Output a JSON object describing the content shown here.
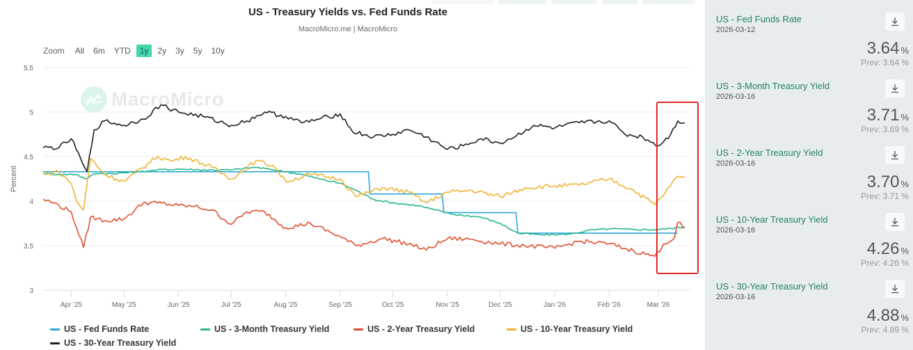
{
  "header": {
    "title": "US - Treasury Yields vs. Fed Funds Rate",
    "subtitle": "MacroMicro.me | MacroMicro"
  },
  "range_selector": {
    "label": "Zoom",
    "buttons": [
      "All",
      "6m",
      "YTD",
      "1y",
      "2y",
      "3y",
      "5y",
      "10y"
    ],
    "active": "1y"
  },
  "watermark": "MacroMicro",
  "chart_data": {
    "type": "line",
    "title": "US - Treasury Yields vs. Fed Funds Rate",
    "subtitle": "MacroMicro.me | MacroMicro",
    "xlabel": "",
    "ylabel": "Percent",
    "ylim": [
      3,
      5.5
    ],
    "yticks": [
      3,
      3.5,
      4,
      4.5,
      5,
      5.5
    ],
    "ytick_labels": [
      "3",
      "3.5",
      "4",
      "4.5",
      "5",
      "5.5"
    ],
    "x_range": [
      "2025-03-16",
      "2026-03-16"
    ],
    "xticks": [
      "2025-04-01",
      "2025-05-01",
      "2025-06-01",
      "2025-07-01",
      "2025-08-01",
      "2025-09-01",
      "2025-10-01",
      "2025-11-01",
      "2025-12-01",
      "2026-01-01",
      "2026-02-01",
      "2026-03-01"
    ],
    "xtick_labels": [
      "Apr '25",
      "May '25",
      "Jun '25",
      "Jul '25",
      "Aug '25",
      "Sep '25",
      "Oct '25",
      "Nov '25",
      "Dec '25",
      "Jan '26",
      "Feb '26",
      "Mar '26"
    ],
    "grid": true,
    "legend_position": "bottom",
    "annotation": "red highlight box around Mar 2026",
    "series": [
      {
        "name": "US - Fed Funds Rate",
        "color": "#2aa7d6",
        "points": [
          [
            "2025-03-16",
            4.33
          ],
          [
            "2025-09-17",
            4.33
          ],
          [
            "2025-09-18",
            4.08
          ],
          [
            "2025-10-29",
            4.08
          ],
          [
            "2025-10-30",
            3.87
          ],
          [
            "2025-12-10",
            3.87
          ],
          [
            "2025-12-11",
            3.64
          ],
          [
            "2026-03-12",
            3.64
          ]
        ]
      },
      {
        "name": "US - 3-Month Treasury Yield",
        "color": "#26b58c",
        "points": [
          [
            "2025-03-16",
            4.31
          ],
          [
            "2025-03-25",
            4.3
          ],
          [
            "2025-04-04",
            4.3
          ],
          [
            "2025-04-09",
            4.25
          ],
          [
            "2025-04-15",
            4.31
          ],
          [
            "2025-04-25",
            4.31
          ],
          [
            "2025-05-10",
            4.33
          ],
          [
            "2025-05-20",
            4.35
          ],
          [
            "2025-06-01",
            4.36
          ],
          [
            "2025-06-15",
            4.35
          ],
          [
            "2025-07-01",
            4.35
          ],
          [
            "2025-07-15",
            4.38
          ],
          [
            "2025-08-01",
            4.33
          ],
          [
            "2025-08-10",
            4.3
          ],
          [
            "2025-08-20",
            4.25
          ],
          [
            "2025-09-01",
            4.2
          ],
          [
            "2025-09-10",
            4.12
          ],
          [
            "2025-09-20",
            4.02
          ],
          [
            "2025-10-01",
            3.98
          ],
          [
            "2025-10-15",
            3.95
          ],
          [
            "2025-10-25",
            3.9
          ],
          [
            "2025-11-05",
            3.85
          ],
          [
            "2025-11-20",
            3.82
          ],
          [
            "2025-12-01",
            3.75
          ],
          [
            "2025-12-11",
            3.64
          ],
          [
            "2025-12-25",
            3.62
          ],
          [
            "2026-01-10",
            3.63
          ],
          [
            "2026-01-20",
            3.67
          ],
          [
            "2026-02-01",
            3.69
          ],
          [
            "2026-02-15",
            3.68
          ],
          [
            "2026-03-01",
            3.68
          ],
          [
            "2026-03-16",
            3.71
          ]
        ]
      },
      {
        "name": "US - 2-Year Treasury Yield",
        "color": "#e04e2c",
        "points": [
          [
            "2025-03-16",
            4.02
          ],
          [
            "2025-03-22",
            3.98
          ],
          [
            "2025-04-01",
            3.88
          ],
          [
            "2025-04-04",
            3.7
          ],
          [
            "2025-04-08",
            3.48
          ],
          [
            "2025-04-12",
            3.82
          ],
          [
            "2025-04-20",
            3.78
          ],
          [
            "2025-05-01",
            3.8
          ],
          [
            "2025-05-12",
            3.98
          ],
          [
            "2025-05-20",
            3.98
          ],
          [
            "2025-06-01",
            3.95
          ],
          [
            "2025-06-10",
            3.94
          ],
          [
            "2025-06-20",
            3.9
          ],
          [
            "2025-07-01",
            3.74
          ],
          [
            "2025-07-10",
            3.88
          ],
          [
            "2025-07-20",
            3.88
          ],
          [
            "2025-08-01",
            3.7
          ],
          [
            "2025-08-15",
            3.75
          ],
          [
            "2025-09-01",
            3.6
          ],
          [
            "2025-09-10",
            3.5
          ],
          [
            "2025-09-25",
            3.58
          ],
          [
            "2025-10-10",
            3.52
          ],
          [
            "2025-10-20",
            3.45
          ],
          [
            "2025-11-01",
            3.58
          ],
          [
            "2025-11-15",
            3.57
          ],
          [
            "2025-12-01",
            3.52
          ],
          [
            "2025-12-15",
            3.5
          ],
          [
            "2026-01-01",
            3.47
          ],
          [
            "2026-01-15",
            3.55
          ],
          [
            "2026-02-01",
            3.52
          ],
          [
            "2026-02-15",
            3.44
          ],
          [
            "2026-02-27",
            3.38
          ],
          [
            "2026-03-04",
            3.52
          ],
          [
            "2026-03-10",
            3.58
          ],
          [
            "2026-03-12",
            3.76
          ],
          [
            "2026-03-16",
            3.7
          ]
        ]
      },
      {
        "name": "US - 10-Year Treasury Yield",
        "color": "#f0b232",
        "points": [
          [
            "2025-03-16",
            4.3
          ],
          [
            "2025-03-25",
            4.33
          ],
          [
            "2025-04-01",
            4.2
          ],
          [
            "2025-04-04",
            4.0
          ],
          [
            "2025-04-08",
            3.9
          ],
          [
            "2025-04-12",
            4.48
          ],
          [
            "2025-04-20",
            4.3
          ],
          [
            "2025-05-01",
            4.22
          ],
          [
            "2025-05-20",
            4.5
          ],
          [
            "2025-05-28",
            4.45
          ],
          [
            "2025-06-05",
            4.5
          ],
          [
            "2025-06-20",
            4.38
          ],
          [
            "2025-07-01",
            4.25
          ],
          [
            "2025-07-15",
            4.45
          ],
          [
            "2025-07-25",
            4.4
          ],
          [
            "2025-08-01",
            4.22
          ],
          [
            "2025-08-15",
            4.3
          ],
          [
            "2025-09-01",
            4.25
          ],
          [
            "2025-09-10",
            4.05
          ],
          [
            "2025-09-25",
            4.15
          ],
          [
            "2025-10-10",
            4.1
          ],
          [
            "2025-10-20",
            3.98
          ],
          [
            "2025-11-01",
            4.1
          ],
          [
            "2025-11-15",
            4.12
          ],
          [
            "2025-12-01",
            4.05
          ],
          [
            "2025-12-15",
            4.15
          ],
          [
            "2026-01-01",
            4.17
          ],
          [
            "2026-01-15",
            4.18
          ],
          [
            "2026-02-01",
            4.25
          ],
          [
            "2026-02-15",
            4.12
          ],
          [
            "2026-02-27",
            3.96
          ],
          [
            "2026-03-05",
            4.1
          ],
          [
            "2026-03-12",
            4.28
          ],
          [
            "2026-03-16",
            4.26
          ]
        ]
      },
      {
        "name": "US - 30-Year Treasury Yield",
        "color": "#1e1e24",
        "points": [
          [
            "2025-03-16",
            4.6
          ],
          [
            "2025-03-25",
            4.6
          ],
          [
            "2025-04-01",
            4.7
          ],
          [
            "2025-04-08",
            4.4
          ],
          [
            "2025-04-10",
            4.33
          ],
          [
            "2025-04-14",
            4.8
          ],
          [
            "2025-04-20",
            4.9
          ],
          [
            "2025-05-01",
            4.85
          ],
          [
            "2025-05-12",
            4.92
          ],
          [
            "2025-05-22",
            5.08
          ],
          [
            "2025-06-01",
            5.0
          ],
          [
            "2025-06-15",
            4.95
          ],
          [
            "2025-07-01",
            4.85
          ],
          [
            "2025-07-10",
            4.9
          ],
          [
            "2025-07-20",
            5.0
          ],
          [
            "2025-08-01",
            4.95
          ],
          [
            "2025-08-10",
            4.88
          ],
          [
            "2025-08-20",
            4.92
          ],
          [
            "2025-09-01",
            4.98
          ],
          [
            "2025-09-08",
            4.78
          ],
          [
            "2025-09-20",
            4.72
          ],
          [
            "2025-10-01",
            4.75
          ],
          [
            "2025-10-10",
            4.8
          ],
          [
            "2025-10-20",
            4.72
          ],
          [
            "2025-11-01",
            4.58
          ],
          [
            "2025-11-10",
            4.62
          ],
          [
            "2025-11-20",
            4.7
          ],
          [
            "2025-12-01",
            4.65
          ],
          [
            "2025-12-10",
            4.73
          ],
          [
            "2025-12-20",
            4.85
          ],
          [
            "2026-01-01",
            4.82
          ],
          [
            "2026-01-15",
            4.88
          ],
          [
            "2026-02-01",
            4.9
          ],
          [
            "2026-02-10",
            4.75
          ],
          [
            "2026-02-20",
            4.72
          ],
          [
            "2026-03-01",
            4.62
          ],
          [
            "2026-03-08",
            4.75
          ],
          [
            "2026-03-12",
            4.9
          ],
          [
            "2026-03-16",
            4.88
          ]
        ]
      }
    ]
  },
  "legend": [
    {
      "label": "US - Fed Funds Rate",
      "color": "#2aa7d6"
    },
    {
      "label": "US - 3-Month Treasury Yield",
      "color": "#26b58c"
    },
    {
      "label": "US - 2-Year Treasury Yield",
      "color": "#e04e2c"
    },
    {
      "label": "US - 10-Year Treasury Yield",
      "color": "#f0b232"
    },
    {
      "label": "US - 30-Year Treasury Yield",
      "color": "#1e1e24"
    }
  ],
  "side_panel": {
    "cards": [
      {
        "title": "US - Fed Funds Rate",
        "date": "2026-03-12",
        "value": "3.64",
        "unit": "%",
        "prev": "Prev: 3.64 %"
      },
      {
        "title": "US - 3-Month Treasury Yield",
        "date": "2026-03-16",
        "value": "3.71",
        "unit": "%",
        "prev": "Prev: 3.69 %"
      },
      {
        "title": "US - 2-Year Treasury Yield",
        "date": "2026-03-16",
        "value": "3.70",
        "unit": "%",
        "prev": "Prev: 3.71 %"
      },
      {
        "title": "US - 10-Year Treasury Yield",
        "date": "2026-03-16",
        "value": "4.26",
        "unit": "%",
        "prev": "Prev: 4.26 %"
      },
      {
        "title": "US - 30-Year Treasury Yield",
        "date": "2026-03-16",
        "value": "4.88",
        "unit": "%",
        "prev": "Prev: 4.89 %"
      }
    ]
  }
}
